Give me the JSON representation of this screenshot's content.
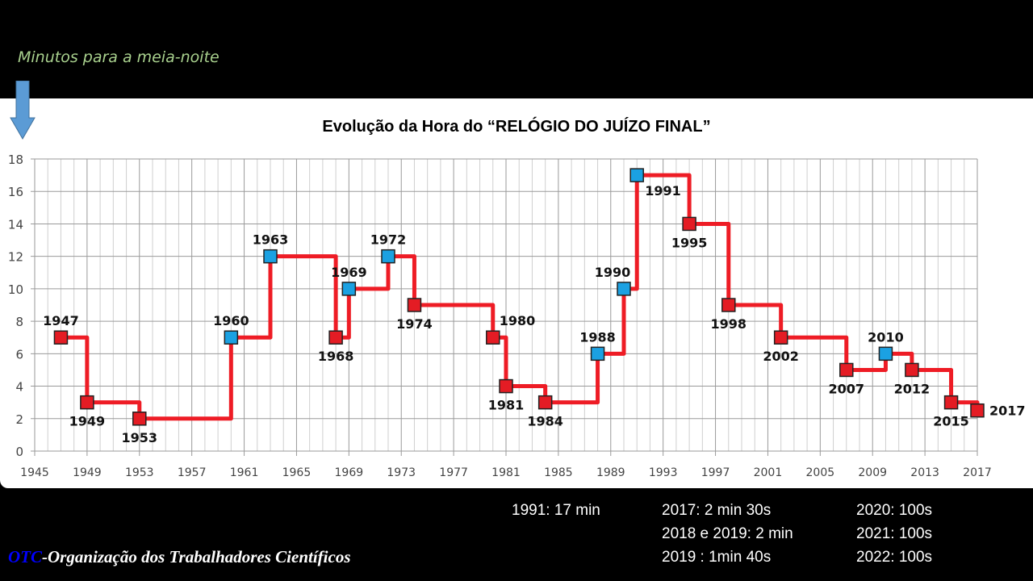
{
  "header": {
    "subtitle": "Minutos para a meia-noite"
  },
  "chart_data": {
    "type": "line",
    "title": "Evolução da Hora  do “RELÓGIO DO JUÍZO FINAL”",
    "xlabel": "",
    "ylabel": "Minutos para a meia-noite",
    "xlim": [
      1945,
      2017
    ],
    "ylim": [
      0,
      18
    ],
    "x_ticks": [
      1945,
      1949,
      1953,
      1957,
      1961,
      1965,
      1969,
      1973,
      1977,
      1981,
      1985,
      1989,
      1993,
      1997,
      2001,
      2005,
      2009,
      2013,
      2017
    ],
    "y_ticks": [
      0,
      2,
      4,
      6,
      8,
      10,
      12,
      14,
      16,
      18
    ],
    "grid": true,
    "line_color": "#ee1c25",
    "marker_colors": {
      "red": "#e41c24",
      "blue": "#1ba1e2"
    },
    "points": [
      {
        "year": 1947,
        "minutes": 7,
        "marker": "red",
        "label": "1947",
        "pos": "above"
      },
      {
        "year": 1949,
        "minutes": 3,
        "marker": "red",
        "label": "1949",
        "pos": "below"
      },
      {
        "year": 1953,
        "minutes": 2,
        "marker": "red",
        "label": "1953",
        "pos": "below"
      },
      {
        "year": 1960,
        "minutes": 7,
        "marker": "blue",
        "label": "1960",
        "pos": "above"
      },
      {
        "year": 1963,
        "minutes": 12,
        "marker": "blue",
        "label": "1963",
        "pos": "above"
      },
      {
        "year": 1968,
        "minutes": 7,
        "marker": "red",
        "label": "1968",
        "pos": "below"
      },
      {
        "year": 1969,
        "minutes": 10,
        "marker": "blue",
        "label": "1969",
        "pos": "above"
      },
      {
        "year": 1972,
        "minutes": 12,
        "marker": "blue",
        "label": "1972",
        "pos": "above"
      },
      {
        "year": 1974,
        "minutes": 9,
        "marker": "red",
        "label": "1974",
        "pos": "below"
      },
      {
        "year": 1980,
        "minutes": 7,
        "marker": "red",
        "label": "1980",
        "pos": "above-right"
      },
      {
        "year": 1981,
        "minutes": 4,
        "marker": "red",
        "label": "1981",
        "pos": "below"
      },
      {
        "year": 1984,
        "minutes": 3,
        "marker": "red",
        "label": "1984",
        "pos": "below"
      },
      {
        "year": 1988,
        "minutes": 6,
        "marker": "blue",
        "label": "1988",
        "pos": "above"
      },
      {
        "year": 1990,
        "minutes": 10,
        "marker": "blue",
        "label": "1990",
        "pos": "above-left"
      },
      {
        "year": 1991,
        "minutes": 17,
        "marker": "blue",
        "label": "1991",
        "pos": "below-right"
      },
      {
        "year": 1995,
        "minutes": 14,
        "marker": "red",
        "label": "1995",
        "pos": "below"
      },
      {
        "year": 1998,
        "minutes": 9,
        "marker": "red",
        "label": "1998",
        "pos": "below"
      },
      {
        "year": 2002,
        "minutes": 7,
        "marker": "red",
        "label": "2002",
        "pos": "below"
      },
      {
        "year": 2007,
        "minutes": 5,
        "marker": "red",
        "label": "2007",
        "pos": "below"
      },
      {
        "year": 2010,
        "minutes": 6,
        "marker": "blue",
        "label": "2010",
        "pos": "above"
      },
      {
        "year": 2012,
        "minutes": 5,
        "marker": "red",
        "label": "2012",
        "pos": "below"
      },
      {
        "year": 2015,
        "minutes": 3,
        "marker": "red",
        "label": "2015",
        "pos": "below"
      },
      {
        "year": 2017,
        "minutes": 2.5,
        "marker": "red",
        "label": "2017",
        "pos": "right"
      }
    ]
  },
  "footer": {
    "col1": [
      "1991: 17 min"
    ],
    "col2": [
      "2017: 2 min 30s",
      "2018 e 2019: 2 min",
      "2019 : 1min 40s"
    ],
    "col3": [
      "2020: 100s",
      "2021: 100s",
      "2022: 100s"
    ],
    "org_abbr": "OTC",
    "org_name": "-Organização dos Trabalhadores Científicos"
  }
}
